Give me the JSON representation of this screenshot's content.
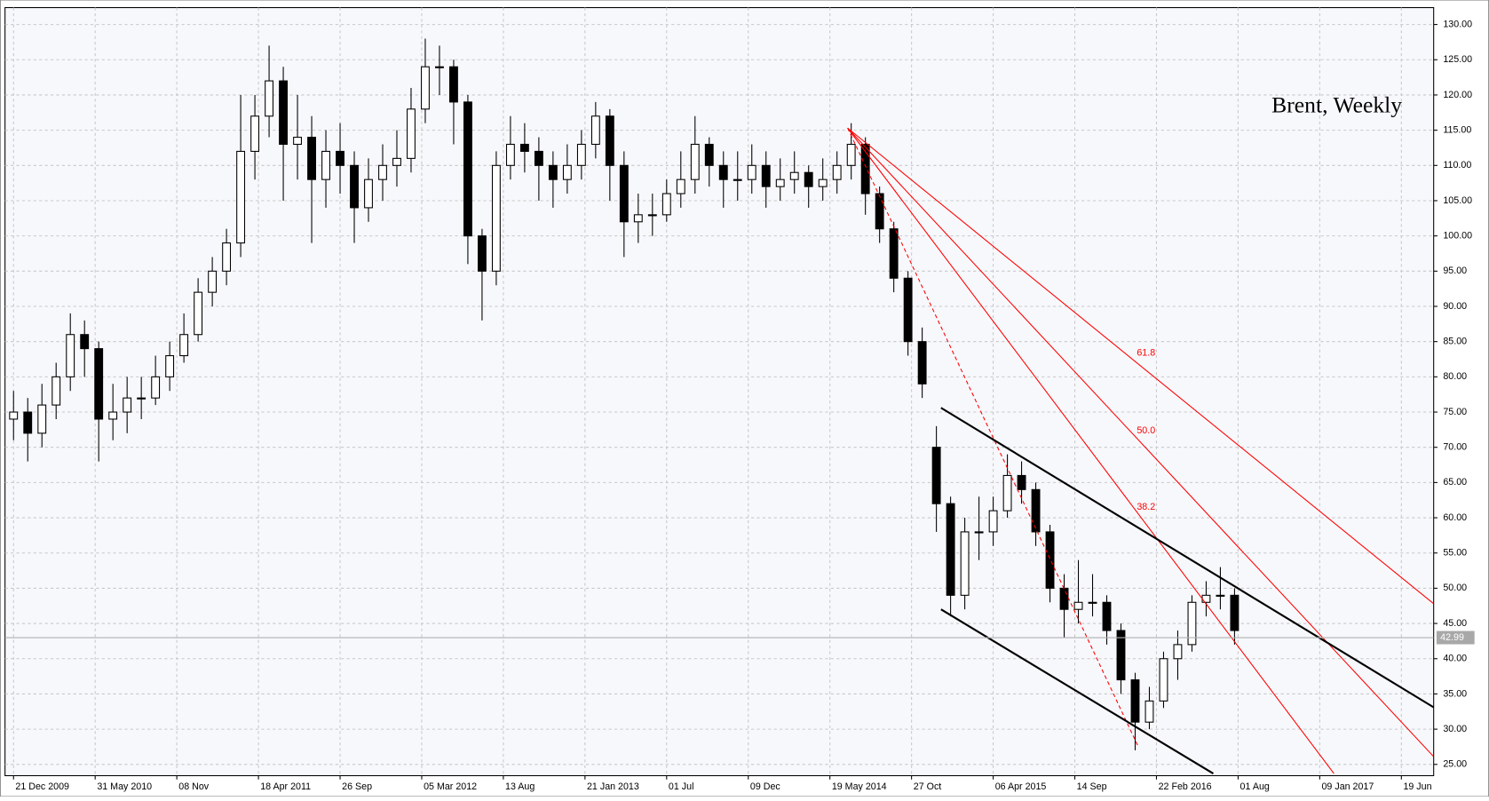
{
  "chart_data": {
    "type": "candlestick",
    "title": "Brent, Weekly",
    "xlim": [
      -2.4,
      400.1
    ],
    "ylim": [
      23.4,
      132.4
    ],
    "grid": true,
    "xticks": [
      {
        "value": 0,
        "label": "21 Dec 2009"
      },
      {
        "value": 23,
        "label": "31 May 2010"
      },
      {
        "value": 46,
        "label": "08 Nov"
      },
      {
        "value": 69,
        "label": "18 Apr 2011"
      },
      {
        "value": 92,
        "label": "26 Sep"
      },
      {
        "value": 115,
        "label": "05 Mar 2012"
      },
      {
        "value": 138,
        "label": "13 Aug"
      },
      {
        "value": 161,
        "label": "21 Jan 2013"
      },
      {
        "value": 184,
        "label": "01 Jul"
      },
      {
        "value": 207,
        "label": "09 Dec"
      },
      {
        "value": 230,
        "label": "19 May 2014"
      },
      {
        "value": 253,
        "label": "27 Oct"
      },
      {
        "value": 276,
        "label": "06 Apr 2015"
      },
      {
        "value": 299,
        "label": "14 Sep"
      },
      {
        "value": 322,
        "label": "22 Feb 2016"
      },
      {
        "value": 345,
        "label": "01 Aug"
      },
      {
        "value": 368,
        "label": "09 Jan 2017"
      },
      {
        "value": 391,
        "label": "19 Jun"
      }
    ],
    "yticks": [
      {
        "value": 25,
        "label": "25.00"
      },
      {
        "value": 30,
        "label": "30.00"
      },
      {
        "value": 35,
        "label": "35.00"
      },
      {
        "value": 40,
        "label": "40.00"
      },
      {
        "value": 45,
        "label": "45.00"
      },
      {
        "value": 50,
        "label": "50.00"
      },
      {
        "value": 55,
        "label": "55.00"
      },
      {
        "value": 60,
        "label": "60.00"
      },
      {
        "value": 65,
        "label": "65.00"
      },
      {
        "value": 70,
        "label": "70.00"
      },
      {
        "value": 75,
        "label": "75.00"
      },
      {
        "value": 80,
        "label": "80.00"
      },
      {
        "value": 85,
        "label": "85.00"
      },
      {
        "value": 90,
        "label": "90.00"
      },
      {
        "value": 95,
        "label": "95.00"
      },
      {
        "value": 100,
        "label": "100.00"
      },
      {
        "value": 105,
        "label": "105.00"
      },
      {
        "value": 110,
        "label": "110.00"
      },
      {
        "value": 115,
        "label": "115.00"
      },
      {
        "value": 120,
        "label": "120.00"
      },
      {
        "value": 125,
        "label": "125.00"
      },
      {
        "value": 130,
        "label": "130.00"
      }
    ],
    "x": [
      0,
      4,
      8,
      12,
      16,
      20,
      24,
      28,
      32,
      36,
      40,
      44,
      48,
      52,
      56,
      60,
      64,
      68,
      72,
      76,
      80,
      84,
      88,
      92,
      96,
      100,
      104,
      108,
      112,
      116,
      120,
      124,
      128,
      132,
      136,
      140,
      144,
      148,
      152,
      156,
      160,
      164,
      168,
      172,
      176,
      180,
      184,
      188,
      192,
      196,
      200,
      204,
      208,
      212,
      216,
      220,
      224,
      228,
      232,
      236,
      240,
      244,
      248,
      252,
      256,
      260,
      264,
      268,
      272,
      276,
      280,
      284,
      288,
      292,
      296,
      300,
      304,
      308,
      312,
      316,
      320,
      324,
      328,
      332,
      336,
      340,
      344
    ],
    "open": [
      74,
      75,
      72,
      76,
      80,
      86,
      84,
      74,
      75,
      77,
      77,
      80,
      83,
      86,
      92,
      95,
      99,
      112,
      117,
      122,
      113,
      114,
      108,
      112,
      110,
      104,
      108,
      110,
      111,
      118,
      124,
      124,
      119,
      100,
      95,
      110,
      113,
      112,
      110,
      108,
      110,
      113,
      117,
      110,
      102,
      103,
      103,
      106,
      108,
      113,
      110,
      108,
      108,
      110,
      107,
      108,
      109,
      107,
      108,
      110,
      113,
      106,
      101,
      94,
      85,
      70,
      62,
      49,
      58,
      58,
      61,
      66,
      64,
      58,
      50,
      47,
      48,
      48,
      44,
      37,
      31,
      34,
      40,
      42,
      48,
      49,
      49
    ],
    "high": [
      78,
      77,
      79,
      82,
      89,
      88,
      85,
      79,
      80,
      80,
      83,
      85,
      89,
      94,
      97,
      101,
      120,
      120,
      127,
      124,
      120,
      117,
      115,
      116,
      112,
      111,
      113,
      115,
      121,
      128,
      127,
      125,
      120,
      101,
      112,
      117,
      116,
      114,
      112,
      113,
      115,
      119,
      118,
      112,
      106,
      106,
      108,
      112,
      117,
      114,
      112,
      112,
      113,
      112,
      111,
      112,
      110,
      111,
      112,
      116,
      114,
      107,
      102,
      95,
      87,
      73,
      63,
      60,
      63,
      63,
      69,
      68,
      65,
      59,
      52,
      54,
      52,
      49,
      45,
      38,
      36,
      41,
      44,
      49,
      51,
      53,
      50
    ],
    "low": [
      71,
      68,
      70,
      74,
      78,
      80,
      68,
      71,
      72,
      74,
      76,
      78,
      82,
      85,
      90,
      93,
      97,
      108,
      114,
      105,
      108,
      99,
      104,
      106,
      99,
      102,
      105,
      107,
      109,
      116,
      120,
      113,
      96,
      88,
      93,
      108,
      109,
      105,
      104,
      106,
      108,
      111,
      105,
      97,
      99,
      100,
      102,
      104,
      106,
      107,
      104,
      105,
      106,
      104,
      105,
      106,
      104,
      105,
      106,
      108,
      103,
      99,
      92,
      83,
      77,
      58,
      46,
      47,
      54,
      56,
      60,
      62,
      56,
      48,
      43,
      45,
      46,
      42,
      35,
      27,
      30,
      33,
      37,
      41,
      46,
      47,
      42
    ],
    "close": [
      75,
      72,
      76,
      80,
      86,
      84,
      74,
      75,
      77,
      77,
      80,
      83,
      86,
      92,
      95,
      99,
      112,
      117,
      122,
      113,
      114,
      108,
      112,
      110,
      104,
      108,
      110,
      111,
      118,
      124,
      124,
      119,
      100,
      95,
      110,
      113,
      112,
      110,
      108,
      110,
      113,
      117,
      110,
      102,
      103,
      103,
      106,
      108,
      113,
      110,
      108,
      108,
      110,
      107,
      108,
      109,
      107,
      108,
      110,
      113,
      106,
      101,
      94,
      85,
      79,
      62,
      49,
      58,
      58,
      61,
      66,
      64,
      58,
      50,
      47,
      48,
      48,
      44,
      37,
      31,
      34,
      40,
      42,
      48,
      49,
      49,
      44
    ],
    "last_price": 42.99,
    "fan_lines": [
      {
        "label": "61.8",
        "color": "#ff0000",
        "x": [
          235,
          400.1
        ],
        "y": [
          115.3,
          47.8
        ]
      },
      {
        "label": "50.0",
        "color": "#ff0000",
        "x": [
          235,
          400.1
        ],
        "y": [
          115.3,
          26.1
        ]
      },
      {
        "label": "38.2",
        "color": "#ff0000",
        "x": [
          235,
          372
        ],
        "y": [
          115.3,
          23.7
        ]
      },
      {
        "color": "#ff0000",
        "style": "dashed",
        "x": [
          235,
          316.7
        ],
        "y": [
          115.3,
          27.7
        ]
      }
    ],
    "channel_lines": [
      {
        "color": "#000000",
        "x": [
          261.3,
          400.1
        ],
        "y": [
          75.6,
          33.1
        ]
      },
      {
        "color": "#000000",
        "x": [
          261.3,
          338
        ],
        "y": [
          47.0,
          23.7
        ]
      }
    ]
  }
}
